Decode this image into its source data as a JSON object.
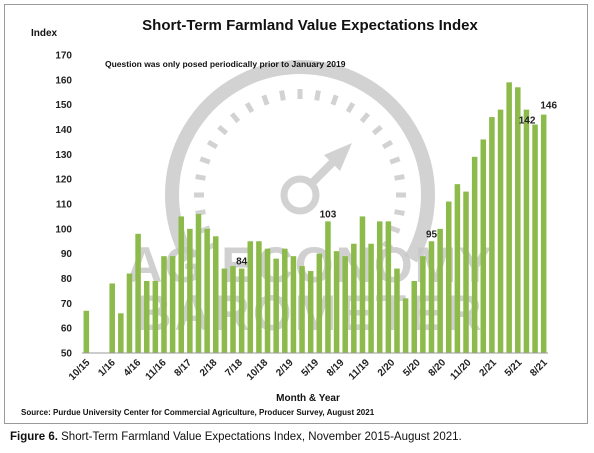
{
  "chart_data": {
    "type": "bar",
    "title": "Short-Term Farmland Value Expectations Index",
    "ylabel": "Index",
    "xlabel": "Month & Year",
    "note": "Question was only posed periodically prior to January 2019",
    "source": "Source: Purdue University Center for Commercial Agriculture, Producer Survey, August 2021",
    "ylim": [
      50,
      170
    ],
    "yticks": [
      50,
      60,
      70,
      80,
      90,
      100,
      110,
      120,
      130,
      140,
      150,
      160,
      170
    ],
    "grid": false,
    "bar_color": "#8dbb4b",
    "xtick_labels": [
      "10/15",
      "1/16",
      "4/16",
      "11/16",
      "8/17",
      "2/18",
      "7/18",
      "10/18",
      "2/19",
      "5/19",
      "8/19",
      "11/19",
      "2/20",
      "5/20",
      "8/20",
      "11/20",
      "2/21",
      "5/21",
      "8/21"
    ],
    "values": [
      67,
      null,
      null,
      78,
      66,
      82,
      98,
      79,
      79,
      89,
      89,
      105,
      100,
      106,
      100,
      97,
      84,
      85,
      84,
      95,
      95,
      92,
      88,
      92,
      89,
      85,
      83,
      90,
      103,
      91,
      89,
      94,
      105,
      94,
      103,
      103,
      84,
      72,
      79,
      89,
      95,
      100,
      111,
      118,
      115,
      129,
      136,
      145,
      148,
      159,
      157,
      148,
      142,
      146
    ],
    "data_labels": [
      {
        "index": 18,
        "text": "84"
      },
      {
        "index": 28,
        "text": "103"
      },
      {
        "index": 40,
        "text": "95"
      },
      {
        "index": 52,
        "text": "142"
      },
      {
        "index": 53,
        "text": "146"
      }
    ],
    "watermark": [
      "AG ECONOMY",
      "BAROMETER"
    ]
  },
  "caption": {
    "figure_label": "Figure 6.",
    "text": " Short-Term Farmland Value Expectations Index, November 2015-August 2021."
  }
}
